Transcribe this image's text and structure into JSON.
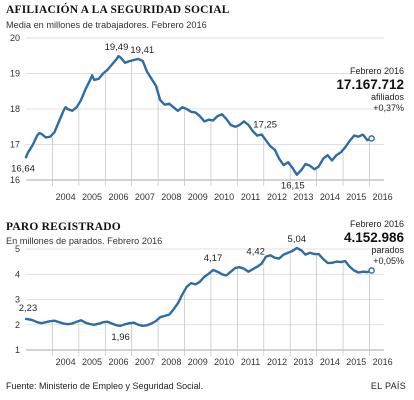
{
  "chart_data": [
    {
      "type": "line",
      "title": "AFILIACIÓN A LA SEGURIDAD SOCIAL",
      "subtitle": "Media en millones de trabajadores. Febrero 2016",
      "ylim": [
        16,
        20
      ],
      "yticks": [
        "16",
        "17",
        "18",
        "19",
        "20"
      ],
      "xticks": [
        "2004",
        "2005",
        "2006",
        "2007",
        "2008",
        "2009",
        "2010",
        "2011",
        "2012",
        "2013",
        "2014",
        "2015",
        "2016"
      ],
      "grid": true,
      "color": "#2e6da4",
      "annotations": [
        "16,64",
        "19,49",
        "19,41",
        "17,25",
        "16,15"
      ],
      "callout": {
        "period": "Febrero 2016",
        "value": "17.167.712",
        "unit": "afiliados",
        "change": "+0,37%"
      },
      "series": [
        {
          "x": [
            2003.0,
            2003.08,
            2003.25,
            2003.42,
            2003.5,
            2003.58,
            2003.75,
            2003.92,
            2004.08,
            2004.25,
            2004.42,
            2004.5,
            2004.58,
            2004.75,
            2004.92,
            2005.08,
            2005.25,
            2005.42,
            2005.5,
            2005.58,
            2005.75,
            2005.92,
            2006.08,
            2006.25,
            2006.42,
            2006.5,
            2006.58,
            2006.75,
            2006.92,
            2007.08,
            2007.25,
            2007.42,
            2007.5,
            2007.58,
            2007.75,
            2007.92,
            2008.08,
            2008.25,
            2008.42,
            2008.58,
            2008.75,
            2008.92,
            2009.08,
            2009.25,
            2009.42,
            2009.58,
            2009.75,
            2009.92,
            2010.08,
            2010.25,
            2010.42,
            2010.58,
            2010.75,
            2010.92,
            2011.08,
            2011.25,
            2011.42,
            2011.58,
            2011.75,
            2011.92,
            2012.08,
            2012.25,
            2012.42,
            2012.58,
            2012.75,
            2012.92,
            2013.08,
            2013.25,
            2013.42,
            2013.58,
            2013.75,
            2013.92,
            2014.08,
            2014.25,
            2014.42,
            2014.58,
            2014.75,
            2014.92,
            2015.08,
            2015.25,
            2015.42,
            2015.58,
            2015.75,
            2015.92,
            2016.08
          ],
          "values": [
            16.64,
            16.78,
            16.98,
            17.25,
            17.32,
            17.3,
            17.2,
            17.22,
            17.35,
            17.65,
            17.95,
            18.05,
            18.0,
            17.95,
            18.05,
            18.25,
            18.55,
            18.8,
            18.95,
            18.82,
            18.85,
            19.0,
            19.1,
            19.25,
            19.4,
            19.49,
            19.45,
            19.3,
            19.35,
            19.38,
            19.41,
            19.35,
            19.2,
            19.05,
            18.85,
            18.65,
            18.25,
            18.12,
            18.15,
            18.05,
            17.95,
            18.05,
            18.0,
            17.92,
            17.9,
            17.8,
            17.65,
            17.7,
            17.68,
            17.8,
            17.85,
            17.72,
            17.55,
            17.5,
            17.55,
            17.65,
            17.55,
            17.38,
            17.25,
            17.28,
            17.12,
            16.95,
            16.85,
            16.6,
            16.42,
            16.5,
            16.35,
            16.15,
            16.28,
            16.45,
            16.4,
            16.3,
            16.38,
            16.6,
            16.7,
            16.55,
            16.7,
            16.78,
            16.92,
            17.1,
            17.25,
            17.22,
            17.28,
            17.12,
            17.17
          ]
        }
      ]
    },
    {
      "type": "line",
      "title": "PARO REGISTRADO",
      "subtitle": "En millones de parados. Febrero 2016",
      "ylim": [
        1,
        5
      ],
      "yticks": [
        "1",
        "2",
        "3",
        "4",
        "5"
      ],
      "xticks": [
        "2004",
        "2005",
        "2006",
        "2007",
        "2008",
        "2009",
        "2010",
        "2011",
        "2012",
        "2013",
        "2014",
        "2015",
        "2016"
      ],
      "grid": true,
      "color": "#2e6da4",
      "annotations": [
        "2,23",
        "1,96",
        "4,17",
        "4,42",
        "5,04"
      ],
      "callout": {
        "period": "Febrero 2016",
        "value": "4.152.986",
        "unit": "parados",
        "change": "+0,05%"
      },
      "series": [
        {
          "x": [
            2003.0,
            2003.08,
            2003.25,
            2003.42,
            2003.5,
            2003.58,
            2003.75,
            2003.92,
            2004.08,
            2004.25,
            2004.42,
            2004.58,
            2004.75,
            2004.92,
            2005.08,
            2005.25,
            2005.42,
            2005.58,
            2005.75,
            2005.92,
            2006.08,
            2006.25,
            2006.42,
            2006.58,
            2006.75,
            2006.92,
            2007.08,
            2007.25,
            2007.42,
            2007.58,
            2007.75,
            2007.92,
            2008.08,
            2008.25,
            2008.42,
            2008.58,
            2008.75,
            2008.92,
            2009.08,
            2009.25,
            2009.42,
            2009.58,
            2009.75,
            2009.92,
            2010.08,
            2010.25,
            2010.42,
            2010.58,
            2010.75,
            2010.92,
            2011.08,
            2011.25,
            2011.42,
            2011.58,
            2011.75,
            2011.92,
            2012.08,
            2012.25,
            2012.42,
            2012.58,
            2012.75,
            2012.92,
            2013.08,
            2013.25,
            2013.42,
            2013.58,
            2013.75,
            2013.92,
            2014.08,
            2014.25,
            2014.42,
            2014.58,
            2014.75,
            2014.92,
            2015.08,
            2015.25,
            2015.42,
            2015.58,
            2015.75,
            2015.92,
            2016.08
          ],
          "values": [
            2.23,
            2.22,
            2.18,
            2.1,
            2.08,
            2.06,
            2.1,
            2.14,
            2.16,
            2.1,
            2.05,
            2.02,
            2.05,
            2.12,
            2.18,
            2.08,
            2.03,
            2.0,
            2.04,
            2.1,
            2.12,
            2.05,
            1.98,
            1.96,
            2.02,
            2.06,
            2.08,
            2.0,
            1.96,
            1.98,
            2.05,
            2.15,
            2.3,
            2.35,
            2.4,
            2.6,
            2.85,
            3.2,
            3.5,
            3.65,
            3.6,
            3.7,
            3.9,
            4.02,
            4.17,
            4.1,
            4.0,
            3.95,
            4.1,
            4.25,
            4.28,
            4.22,
            4.1,
            4.2,
            4.3,
            4.42,
            4.7,
            4.75,
            4.65,
            4.62,
            4.78,
            4.85,
            4.92,
            5.04,
            4.95,
            4.78,
            4.85,
            4.8,
            4.8,
            4.6,
            4.45,
            4.45,
            4.5,
            4.48,
            4.52,
            4.3,
            4.15,
            4.07,
            4.1,
            4.09,
            4.15
          ]
        }
      ]
    }
  ],
  "footer": {
    "source": "Fuente: Ministerio de Empleo y Seguridad Social.",
    "brand": "EL PAÍS"
  }
}
